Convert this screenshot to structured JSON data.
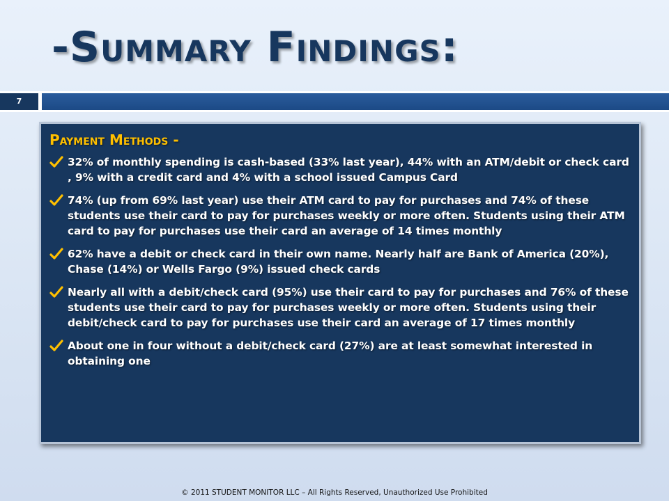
{
  "title": "-Summary Findings:",
  "page_number": "7",
  "section": {
    "heading": "Payment Methods -",
    "bullets": [
      {
        "icon": "checkmark-icon",
        "text": "32% of monthly spending is cash-based (33% last year), 44% with an ATM/debit or check card , 9% with a credit card and 4% with a school issued Campus Card"
      },
      {
        "icon": "checkmark-icon",
        "text": "74% (up from 69% last year) use their ATM card to pay for purchases and 74% of these students use their card to pay for purchases weekly or more often. Students using their ATM card to pay for purchases use their card an average of 14 times monthly"
      },
      {
        "icon": "checkmark-icon",
        "text": "62% have a debit or check card in their own name. Nearly half are Bank of America (20%), Chase (14%) or Wells Fargo (9%) issued check cards"
      },
      {
        "icon": "checkmark-icon",
        "text": "Nearly all with a debit/check card (95%) use their card to pay for purchases and 76% of these students use their card to pay for purchases weekly or more often. Students using their debit/check card to pay for purchases use their card an average of 17 times monthly"
      },
      {
        "icon": "checkmark-icon",
        "text": "About one in four without a debit/check card  (27%) are at least somewhat interested in obtaining one"
      }
    ]
  },
  "footer": "© 2011 STUDENT  MONITOR  LLC – All Rights Reserved, Unauthorized Use Prohibited",
  "colors": {
    "title": "#17375e",
    "panel": "#17375e",
    "heading": "#ffc000",
    "checkmark": "#ffc000",
    "strip": "#1c4a86"
  }
}
